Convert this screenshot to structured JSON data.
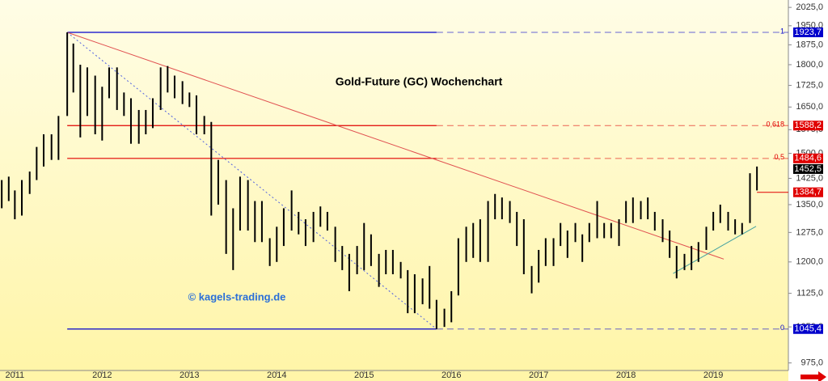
{
  "chart_data": {
    "type": "ohlc",
    "title": "Gold-Future (GC) Wochenchart",
    "annotation": "© kagels-trading.de",
    "log_scale": true,
    "grid": false,
    "bar_color": "#000000",
    "xlim": [
      2010.83,
      2019.86
    ],
    "xticks": [
      2011,
      2012,
      2013,
      2014,
      2015,
      2016,
      2017,
      2018,
      2019
    ],
    "ylim": [
      960,
      2056
    ],
    "yticks": [
      {
        "value": 975,
        "label": "975,0"
      },
      {
        "value": 1050,
        "label": "1050,0"
      },
      {
        "value": 1125,
        "label": "1125,0"
      },
      {
        "value": 1200,
        "label": "1200,0"
      },
      {
        "value": 1275,
        "label": "1275,0"
      },
      {
        "value": 1350,
        "label": "1350,0"
      },
      {
        "value": 1425,
        "label": "1425,0"
      },
      {
        "value": 1500,
        "label": "1500,0"
      },
      {
        "value": 1575,
        "label": "1575,0"
      },
      {
        "value": 1650,
        "label": "1650,0"
      },
      {
        "value": 1725,
        "label": "1725,0"
      },
      {
        "value": 1800,
        "label": "1800,0"
      },
      {
        "value": 1875,
        "label": "1875,0"
      },
      {
        "value": 1950,
        "label": "1950,0"
      },
      {
        "value": 2025,
        "label": "2025,0"
      }
    ],
    "x": [
      2010.85,
      2010.93,
      2011.0,
      2011.08,
      2011.17,
      2011.25,
      2011.33,
      2011.42,
      2011.5,
      2011.6,
      2011.67,
      2011.75,
      2011.83,
      2011.92,
      2012.0,
      2012.08,
      2012.17,
      2012.25,
      2012.33,
      2012.42,
      2012.5,
      2012.58,
      2012.67,
      2012.75,
      2012.83,
      2012.92,
      2013.0,
      2013.08,
      2013.17,
      2013.25,
      2013.33,
      2013.42,
      2013.5,
      2013.58,
      2013.67,
      2013.75,
      2013.83,
      2013.92,
      2014.0,
      2014.08,
      2014.17,
      2014.25,
      2014.33,
      2014.42,
      2014.5,
      2014.58,
      2014.67,
      2014.75,
      2014.83,
      2014.92,
      2015.0,
      2015.08,
      2015.17,
      2015.25,
      2015.33,
      2015.42,
      2015.5,
      2015.58,
      2015.67,
      2015.75,
      2015.83,
      2015.92,
      2016.0,
      2016.08,
      2016.17,
      2016.25,
      2016.33,
      2016.42,
      2016.5,
      2016.58,
      2016.67,
      2016.75,
      2016.83,
      2016.92,
      2017.0,
      2017.08,
      2017.17,
      2017.25,
      2017.33,
      2017.42,
      2017.5,
      2017.58,
      2017.67,
      2017.75,
      2017.83,
      2017.92,
      2018.0,
      2018.08,
      2018.17,
      2018.25,
      2018.33,
      2018.42,
      2018.5,
      2018.58,
      2018.67,
      2018.75,
      2018.83,
      2018.92,
      2019.0,
      2019.08,
      2019.17,
      2019.25,
      2019.33,
      2019.42,
      2019.5
    ],
    "high": [
      1420,
      1430,
      1390,
      1420,
      1445,
      1520,
      1560,
      1560,
      1620,
      1923.7,
      1880,
      1800,
      1790,
      1760,
      1720,
      1790,
      1790,
      1700,
      1680,
      1640,
      1640,
      1680,
      1790,
      1795,
      1760,
      1740,
      1700,
      1690,
      1620,
      1600,
      1480,
      1420,
      1340,
      1430,
      1420,
      1360,
      1360,
      1260,
      1290,
      1340,
      1390,
      1330,
      1310,
      1330,
      1345,
      1330,
      1290,
      1240,
      1220,
      1240,
      1300,
      1270,
      1220,
      1230,
      1230,
      1200,
      1180,
      1170,
      1160,
      1190,
      1110,
      1090,
      1130,
      1260,
      1290,
      1300,
      1310,
      1360,
      1380,
      1370,
      1360,
      1330,
      1310,
      1190,
      1230,
      1260,
      1260,
      1300,
      1280,
      1300,
      1270,
      1300,
      1360,
      1300,
      1300,
      1310,
      1360,
      1370,
      1360,
      1370,
      1330,
      1310,
      1280,
      1240,
      1220,
      1240,
      1250,
      1290,
      1330,
      1350,
      1330,
      1310,
      1300,
      1440,
      1460
    ],
    "low": [
      1340,
      1360,
      1310,
      1320,
      1380,
      1420,
      1460,
      1480,
      1480,
      1620,
      1700,
      1550,
      1620,
      1560,
      1540,
      1680,
      1640,
      1620,
      1530,
      1530,
      1560,
      1580,
      1640,
      1700,
      1680,
      1660,
      1650,
      1560,
      1560,
      1320,
      1350,
      1220,
      1180,
      1280,
      1280,
      1250,
      1250,
      1190,
      1200,
      1240,
      1280,
      1270,
      1240,
      1250,
      1290,
      1280,
      1200,
      1180,
      1130,
      1170,
      1180,
      1190,
      1140,
      1170,
      1170,
      1160,
      1080,
      1080,
      1100,
      1090,
      1045.4,
      1050,
      1060,
      1120,
      1200,
      1210,
      1200,
      1200,
      1310,
      1310,
      1300,
      1240,
      1170,
      1125,
      1150,
      1190,
      1190,
      1240,
      1210,
      1250,
      1200,
      1250,
      1260,
      1260,
      1260,
      1240,
      1300,
      1300,
      1310,
      1310,
      1280,
      1250,
      1210,
      1160,
      1180,
      1180,
      1200,
      1230,
      1280,
      1300,
      1280,
      1270,
      1270,
      1300,
      1390
    ],
    "level_span": [
      2011.6,
      2015.83
    ],
    "levels": {
      "names": [
        "1",
        "0,618",
        "0,5",
        "0"
      ],
      "values": [
        1923.7,
        1588.2,
        1484.6,
        1045.4
      ],
      "value_labels": [
        "1923,7",
        "1588,2",
        "1484,6",
        "1045,4"
      ],
      "colors": [
        "#0000cc",
        "#e00000",
        "#e00000",
        "#0000cc"
      ]
    },
    "price_marks": {
      "values": [
        1452.5,
        1384.7
      ],
      "value_labels": [
        "1452,5",
        "1384,7"
      ],
      "colors": [
        "#000000",
        "#e00000"
      ]
    },
    "trendlines": [
      {
        "color": "#e05050",
        "style": "solid",
        "x": [
          2011.6,
          2019.12
        ],
        "y": [
          1923.7,
          1207
        ]
      },
      {
        "color": "#5060e0",
        "style": "dotted",
        "x": [
          2011.6,
          2015.83
        ],
        "y": [
          1923.7,
          1045.4
        ]
      },
      {
        "color": "#40a0a0",
        "style": "solid",
        "x": [
          2018.54,
          2019.49
        ],
        "y": [
          1172,
          1291
        ]
      }
    ]
  }
}
